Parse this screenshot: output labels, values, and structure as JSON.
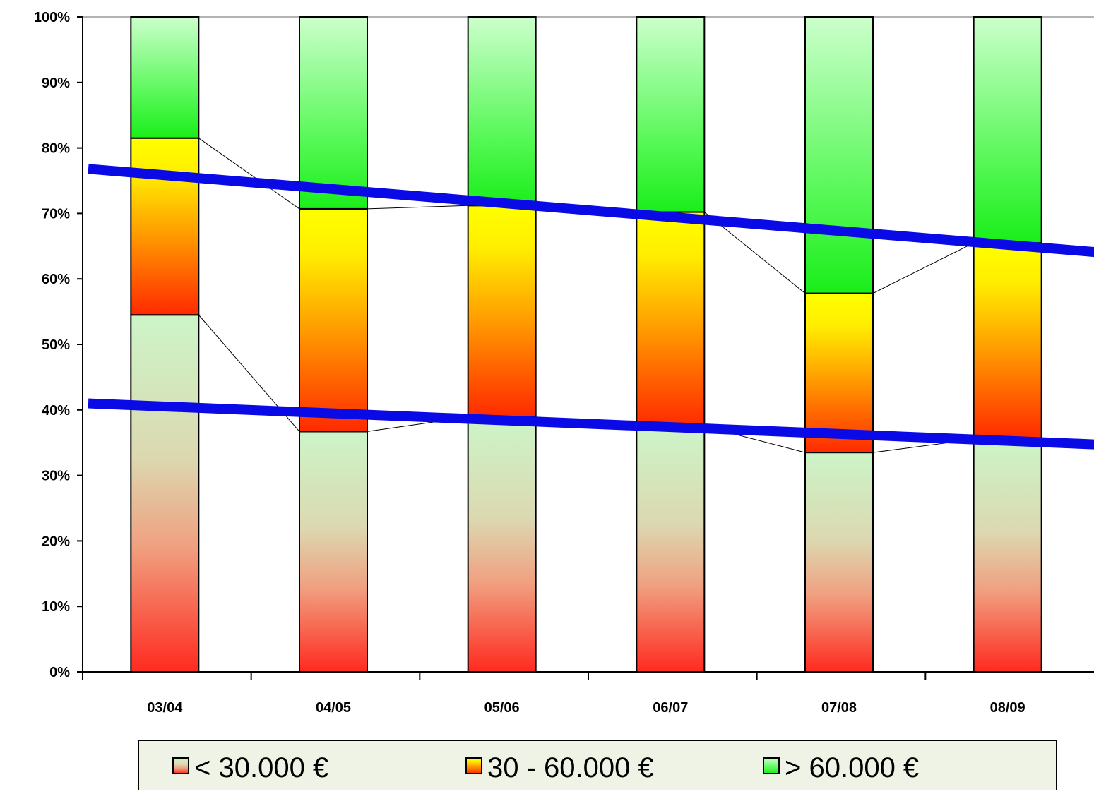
{
  "chart_data": {
    "type": "bar",
    "stacked": true,
    "normalized": true,
    "categories": [
      "03/04",
      "04/05",
      "05/06",
      "06/07",
      "07/08",
      "08/09"
    ],
    "series": [
      {
        "name": "< 30.000 €",
        "values": [
          54.5,
          36.7,
          38.9,
          37.5,
          33.5,
          35.5
        ]
      },
      {
        "name": "30 - 60.000 €",
        "values": [
          27.0,
          34.0,
          32.3,
          32.7,
          24.3,
          30.0
        ]
      },
      {
        "name": "> 60.000 €",
        "values": [
          18.5,
          29.3,
          28.8,
          29.8,
          42.2,
          34.5
        ]
      }
    ],
    "y_ticks": [
      "0%",
      "10%",
      "20%",
      "30%",
      "40%",
      "50%",
      "60%",
      "70%",
      "80%",
      "90%",
      "100%"
    ],
    "ylim": [
      0,
      100
    ],
    "y_unit": "%",
    "grid": false,
    "legend_placement": "bottom",
    "trend_lines": [
      {
        "series": "< 30.000 €",
        "from": [
          0,
          41.0
        ],
        "to": [
          6.5,
          34.0
        ]
      },
      {
        "series": "top of 30 - 60.000 €",
        "from": [
          0,
          76.8
        ],
        "to": [
          6.5,
          62.6
        ]
      }
    ],
    "colors": {
      "low_gradient": [
        "#ff2a1f",
        "#ccf5c8"
      ],
      "mid_gradient": [
        "#ff2a00",
        "#ffff00"
      ],
      "high_gradient": [
        "#2af52a",
        "#ccffcc"
      ],
      "trend_line": "#0a0ae6",
      "legend_background": "#eef3e6",
      "bar_outline": "#000000"
    }
  }
}
